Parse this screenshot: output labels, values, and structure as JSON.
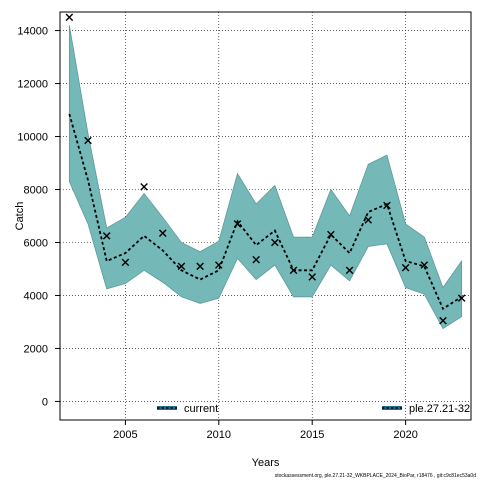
{
  "chart_data": {
    "type": "line",
    "xlabel": "Years",
    "ylabel": "Catch",
    "xlim": [
      2001.5,
      2023.5
    ],
    "ylim": [
      -700,
      14700
    ],
    "x_ticks": [
      2005,
      2010,
      2015,
      2020
    ],
    "x_tick_labels": [
      "2005",
      "2010",
      "2015",
      "2020"
    ],
    "y_ticks": [
      0,
      2000,
      4000,
      6000,
      8000,
      10000,
      12000,
      14000
    ],
    "y_tick_labels": [
      "0",
      "2000",
      "4000",
      "6000",
      "8000",
      "10000",
      "12000",
      "14000"
    ],
    "grid": true,
    "band_color": "#75b8b8",
    "band_edge_color": "#5e9b9b",
    "series": [
      {
        "name": "current",
        "style": "dashed",
        "color": "#000000",
        "x": [
          2002,
          2003,
          2004,
          2005,
          2006,
          2007,
          2008,
          2009,
          2010,
          2011,
          2012,
          2013,
          2014,
          2015,
          2016,
          2017,
          2018,
          2019,
          2020,
          2021,
          2022,
          2023
        ],
        "estimate": [
          10850,
          8350,
          5300,
          5600,
          6250,
          5700,
          4950,
          4600,
          4950,
          6800,
          5900,
          6450,
          4950,
          4950,
          6300,
          5600,
          7150,
          7450,
          5300,
          5100,
          3500,
          3950
        ],
        "lower": [
          8300,
          6700,
          4250,
          4450,
          4950,
          4500,
          3950,
          3700,
          3900,
          5400,
          4600,
          5150,
          3950,
          3950,
          5150,
          4550,
          5850,
          5950,
          4300,
          4050,
          2750,
          3200
        ],
        "upper": [
          14200,
          10100,
          6550,
          6950,
          7850,
          6950,
          6000,
          5650,
          6050,
          8600,
          7450,
          8150,
          6200,
          6200,
          8000,
          7000,
          8950,
          9300,
          6700,
          6200,
          4300,
          5300
        ]
      }
    ],
    "observed": {
      "marker": "x",
      "x": [
        2002,
        2003,
        2004,
        2005,
        2006,
        2007,
        2008,
        2009,
        2010,
        2011,
        2012,
        2013,
        2014,
        2015,
        2016,
        2017,
        2018,
        2019,
        2020,
        2021,
        2022,
        2023
      ],
      "y": [
        14500,
        9850,
        6250,
        5250,
        8100,
        6350,
        5100,
        5100,
        5150,
        6700,
        5350,
        6000,
        4950,
        4700,
        6300,
        4950,
        6850,
        7400,
        5050,
        5150,
        3050,
        3900
      ]
    },
    "legend": {
      "placement": "bottom",
      "entries": [
        {
          "label": "current",
          "position": "bottom-left"
        },
        {
          "label": "ple.27.21-32",
          "position": "bottom-right"
        }
      ]
    }
  },
  "footer": {
    "note": "stockassessment.org, ple.27.21-32_WKBPLACE_2024_BioPar, r18476 , git:c9c81ec53a0d"
  }
}
